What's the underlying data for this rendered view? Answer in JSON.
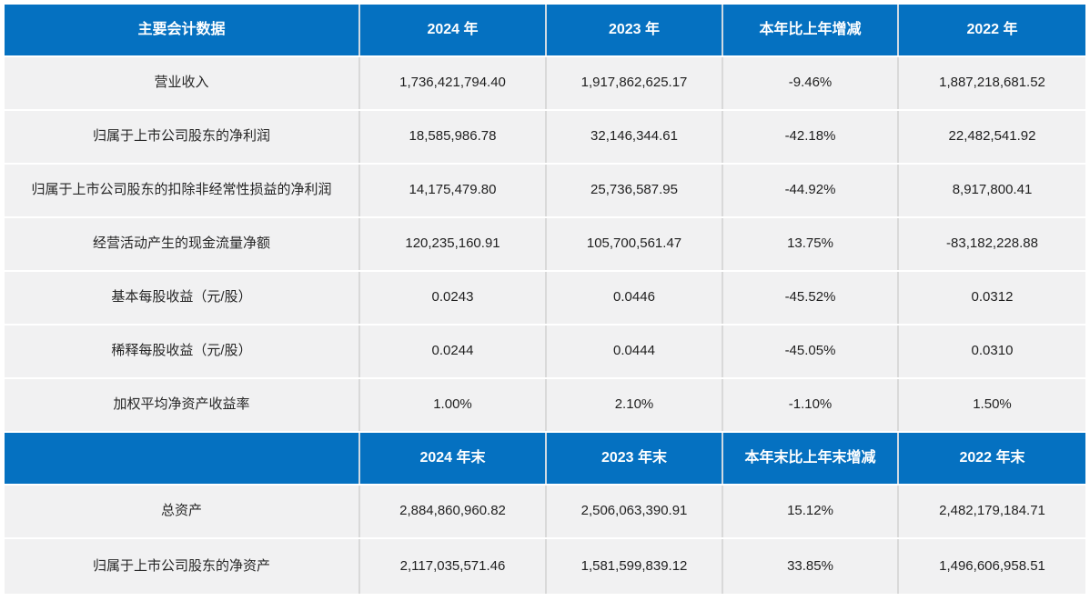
{
  "colors": {
    "header_bg": "#0571c1",
    "header_text": "#ffffff",
    "row_bg": "#f1f1f2",
    "grid_line": "#d9d9d9",
    "body_text": "#1f1f1f"
  },
  "table1": {
    "header": [
      "主要会计数据",
      "2024 年",
      "2023 年",
      "本年比上年增减",
      "2022 年"
    ],
    "rows": [
      [
        "营业收入",
        "1,736,421,794.40",
        "1,917,862,625.17",
        "-9.46%",
        "1,887,218,681.52"
      ],
      [
        "归属于上市公司股东的净利润",
        "18,585,986.78",
        "32,146,344.61",
        "-42.18%",
        "22,482,541.92"
      ],
      [
        "归属于上市公司股东的扣除非经常性损益的净利润",
        "14,175,479.80",
        "25,736,587.95",
        "-44.92%",
        "8,917,800.41"
      ],
      [
        "经营活动产生的现金流量净额",
        "120,235,160.91",
        "105,700,561.47",
        "13.75%",
        "-83,182,228.88"
      ],
      [
        "基本每股收益（元/股）",
        "0.0243",
        "0.0446",
        "-45.52%",
        "0.0312"
      ],
      [
        "稀释每股收益（元/股）",
        "0.0244",
        "0.0444",
        "-45.05%",
        "0.0310"
      ],
      [
        "加权平均净资产收益率",
        "1.00%",
        "2.10%",
        "-1.10%",
        "1.50%"
      ]
    ]
  },
  "table2": {
    "header": [
      "",
      "2024 年末",
      "2023 年末",
      "本年末比上年末增减",
      "2022 年末"
    ],
    "rows": [
      [
        "总资产",
        "2,884,860,960.82",
        "2,506,063,390.91",
        "15.12%",
        "2,482,179,184.71"
      ],
      [
        "归属于上市公司股东的净资产",
        "2,117,035,571.46",
        "1,581,599,839.12",
        "33.85%",
        "1,496,606,958.51"
      ]
    ]
  },
  "chart_data": {
    "type": "table",
    "title": "主要会计数据",
    "sections": [
      {
        "header": [
          "主要会计数据",
          "2024 年",
          "2023 年",
          "本年比上年增减",
          "2022 年"
        ],
        "rows": [
          [
            "营业收入",
            "1,736,421,794.40",
            "1,917,862,625.17",
            "-9.46%",
            "1,887,218,681.52"
          ],
          [
            "归属于上市公司股东的净利润",
            "18,585,986.78",
            "32,146,344.61",
            "-42.18%",
            "22,482,541.92"
          ],
          [
            "归属于上市公司股东的扣除非经常性损益的净利润",
            "14,175,479.80",
            "25,736,587.95",
            "-44.92%",
            "8,917,800.41"
          ],
          [
            "经营活动产生的现金流量净额",
            "120,235,160.91",
            "105,700,561.47",
            "13.75%",
            "-83,182,228.88"
          ],
          [
            "基本每股收益（元/股）",
            "0.0243",
            "0.0446",
            "-45.52%",
            "0.0312"
          ],
          [
            "稀释每股收益（元/股）",
            "0.0244",
            "0.0444",
            "-45.05%",
            "0.0310"
          ],
          [
            "加权平均净资产收益率",
            "1.00%",
            "2.10%",
            "-1.10%",
            "1.50%"
          ]
        ]
      },
      {
        "header": [
          "",
          "2024 年末",
          "2023 年末",
          "本年末比上年末增减",
          "2022 年末"
        ],
        "rows": [
          [
            "总资产",
            "2,884,860,960.82",
            "2,506,063,390.91",
            "15.12%",
            "2,482,179,184.71"
          ],
          [
            "归属于上市公司股东的净资产",
            "2,117,035,571.46",
            "1,581,599,839.12",
            "33.85%",
            "1,496,606,958.51"
          ]
        ]
      }
    ],
    "layout": {
      "grid": "on",
      "header_style": "blue-band",
      "alignment": "center"
    }
  }
}
